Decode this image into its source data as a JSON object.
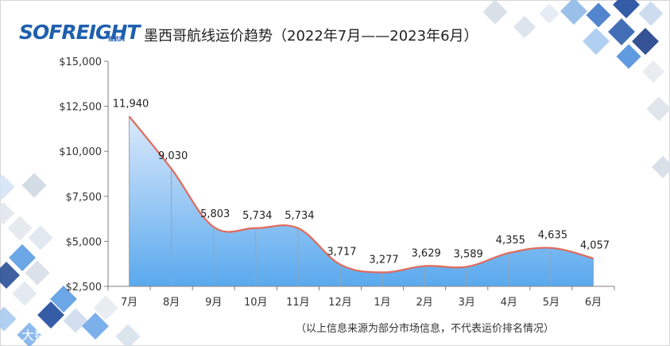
{
  "header": {
    "logo_text": "SOFREIGHT",
    "logo_sub": "搜航网",
    "title": "墨西哥航线运价趋势（2022年7月——2023年6月）"
  },
  "footnote": "（以上信息来源为部分市场信息，不代表运价排名情况）",
  "watermark": {
    "icon": "wechat-icon",
    "text": "大数跨境"
  },
  "colors": {
    "line": "#e06a5a",
    "area_top": "#dbe9fb",
    "area_bottom": "#5aa9ee",
    "axis": "#7f7f7f",
    "brand": "#1f5fae"
  },
  "chart_data": {
    "type": "area",
    "categories": [
      "7月",
      "8月",
      "9月",
      "10月",
      "11月",
      "12月",
      "1月",
      "2月",
      "3月",
      "4月",
      "5月",
      "6月"
    ],
    "values": [
      11940,
      9030,
      5803,
      5734,
      5734,
      3717,
      3277,
      3629,
      3589,
      4355,
      4635,
      4057
    ],
    "data_labels": [
      "11,940",
      "9,030",
      "5,803",
      "5,734",
      "5,734",
      "3,717",
      "3,277",
      "3,629",
      "3,589",
      "4,355",
      "4,635",
      "4,057"
    ],
    "yticks": [
      2500,
      5000,
      7500,
      10000,
      12500,
      15000
    ],
    "ytick_labels": [
      "$2,500",
      "$5,000",
      "$7,500",
      "$10,000",
      "$12,500",
      "$15,000"
    ],
    "ylim": [
      2500,
      15000
    ],
    "grid": false,
    "smooth": true
  }
}
